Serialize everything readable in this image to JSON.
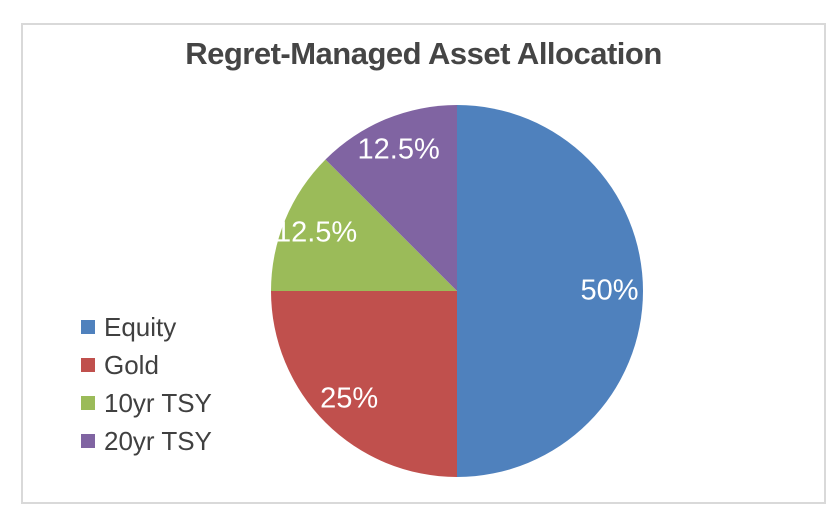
{
  "title": "Regret-Managed Asset Allocation",
  "colors": {
    "frame_border": "#D9D9D9",
    "title_text": "#454545",
    "legend_text": "#404040",
    "data_label_text": "#FFFFFF"
  },
  "chart_data": {
    "type": "pie",
    "title": "Regret-Managed Asset Allocation",
    "series": [
      {
        "name": "Equity",
        "value": 50,
        "label": "50%",
        "color": "#4F81BD"
      },
      {
        "name": "Gold",
        "value": 25,
        "label": "25%",
        "color": "#C0504D"
      },
      {
        "name": "10yr TSY",
        "value": 12.5,
        "label": "12.5%",
        "color": "#9BBB59"
      },
      {
        "name": "20yr TSY",
        "value": 12.5,
        "label": "12.5%",
        "color": "#8064A2"
      }
    ],
    "start_angle_deg": 0,
    "direction": "clockwise",
    "labels_position": "inside-end",
    "legend_position": "left",
    "legend_entries": [
      "Equity",
      "Gold",
      "10yr TSY",
      "20yr TSY"
    ]
  }
}
